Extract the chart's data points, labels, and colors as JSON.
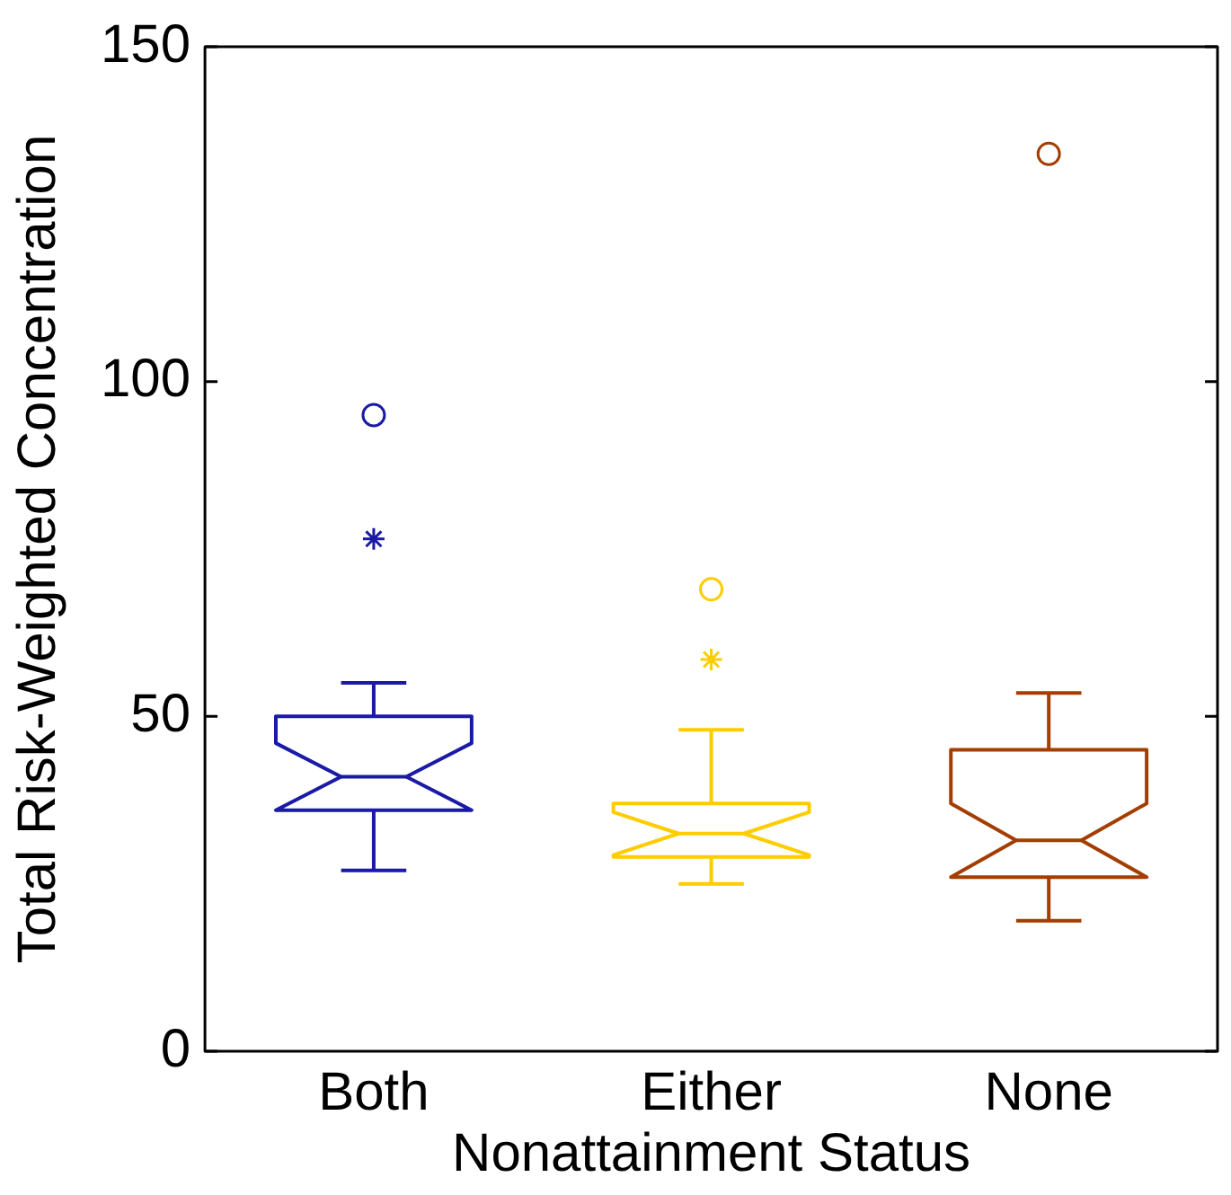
{
  "chart_data": {
    "type": "box",
    "xlabel": "Nonattainment Status",
    "ylabel": "Total Risk-Weighted Concentration",
    "categories": [
      "Both",
      "Either",
      "None"
    ],
    "ylim": [
      0,
      150
    ],
    "yticks": [
      0,
      50,
      100,
      150
    ],
    "grid": false,
    "legend": false,
    "colors": [
      "#1a1aa6",
      "#ffcc00",
      "#a33d00"
    ],
    "boxes": [
      {
        "low": 27,
        "q1": 36,
        "median": 41,
        "q3": 50,
        "high": 55,
        "outliers": [
          95,
          76.5
        ]
      },
      {
        "low": 25,
        "q1": 29,
        "median": 32.5,
        "q3": 37,
        "high": 48,
        "outliers": [
          69,
          58.5
        ]
      },
      {
        "low": 19.5,
        "q1": 26,
        "median": 31.5,
        "q3": 45,
        "high": 53.5,
        "outliers": [
          134
        ]
      }
    ]
  }
}
